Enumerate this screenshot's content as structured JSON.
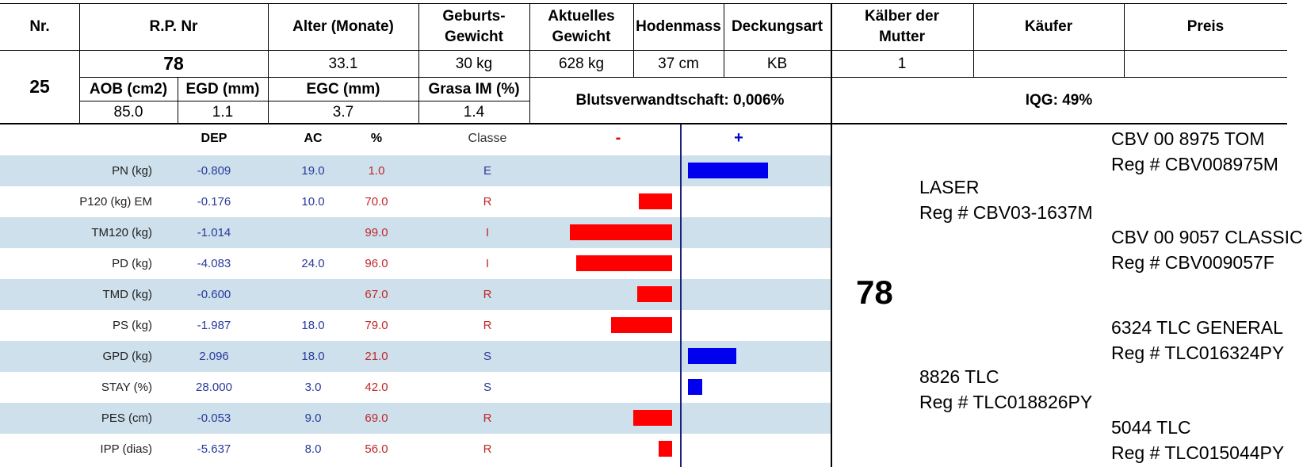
{
  "header": {
    "nr": "Nr.",
    "rp": "R.P. Nr",
    "alter": "Alter (Monate)",
    "geburts": [
      "Geburts-",
      "Gewicht"
    ],
    "aktuell": [
      "Aktuelles",
      "Gewicht"
    ],
    "hoden": "Hodenmass",
    "deckung": "Deckungsart",
    "kaelber": [
      "Kälber der",
      "Mutter"
    ],
    "kaeufer": "Käufer",
    "preis": "Preis"
  },
  "animal": {
    "nr": "25",
    "rp": "78",
    "alter": "33.1",
    "geburtsgewicht": "30 kg",
    "aktuelles_gewicht": "628 kg",
    "hodenmass": "37 cm",
    "deckungsart": "KB",
    "kaelber": "1",
    "kaeufer": "",
    "preis": ""
  },
  "carcass": {
    "aob_label": "AOB (cm2)",
    "aob": "85.0",
    "egd_label": "EGD (mm)",
    "egd": "1.1",
    "egc_label": "EGC (mm)",
    "egc": "3.7",
    "grasa_label": "Grasa IM (%)",
    "grasa": "1.4",
    "blut": "Blutsverwandtschaft: 0,006%",
    "iqg": "IQG: 49%"
  },
  "dep_header": {
    "dep": "DEP",
    "ac": "AC",
    "pct": "%",
    "classe": "Classe",
    "minus": "-",
    "plus": "+"
  },
  "dep_rows": [
    {
      "label": "PN (kg)",
      "dep": "-0.809",
      "ac": "19.0",
      "pct": "1.0",
      "classe": "E",
      "dir": "plus",
      "size": 0.78
    },
    {
      "label": "P120 (kg) EM",
      "dep": "-0.176",
      "ac": "10.0",
      "pct": "70.0",
      "classe": "R",
      "dir": "minus",
      "size": 0.32
    },
    {
      "label": "TM120 (kg)",
      "dep": "-1.014",
      "ac": "",
      "pct": "99.0",
      "classe": "I",
      "dir": "minus",
      "size": 0.99
    },
    {
      "label": "PD (kg)",
      "dep": "-4.083",
      "ac": "24.0",
      "pct": "96.0",
      "classe": "I",
      "dir": "minus",
      "size": 0.93
    },
    {
      "label": "TMD (kg)",
      "dep": "-0.600",
      "ac": "",
      "pct": "67.0",
      "classe": "R",
      "dir": "minus",
      "size": 0.34
    },
    {
      "label": "PS (kg)",
      "dep": "-1.987",
      "ac": "18.0",
      "pct": "79.0",
      "classe": "R",
      "dir": "minus",
      "size": 0.59
    },
    {
      "label": "GPD (kg)",
      "dep": "2.096",
      "ac": "18.0",
      "pct": "21.0",
      "classe": "S",
      "dir": "plus",
      "size": 0.47
    },
    {
      "label": "STAY (%)",
      "dep": "28.000",
      "ac": "3.0",
      "pct": "42.0",
      "classe": "S",
      "dir": "plus",
      "size": 0.14
    },
    {
      "label": "PES (cm)",
      "dep": "-0.053",
      "ac": "9.0",
      "pct": "69.0",
      "classe": "R",
      "dir": "minus",
      "size": 0.38
    },
    {
      "label": "IPP (dias)",
      "dep": "-5.637",
      "ac": "8.0",
      "pct": "56.0",
      "classe": "R",
      "dir": "minus",
      "size": 0.13
    }
  ],
  "pedigree": {
    "animal": "78",
    "sire": {
      "name": "LASER",
      "reg": "Reg # CBV03-1637M"
    },
    "sire_sire": {
      "name": "CBV 00 8975 TOM",
      "reg": "Reg # CBV008975M"
    },
    "sire_dam": {
      "name": "CBV 00 9057 CLASSIC",
      "reg": "Reg # CBV009057F"
    },
    "dam": {
      "name": "8826 TLC",
      "reg": "Reg # TLC018826PY"
    },
    "dam_sire": {
      "name": "6324 TLC GENERAL",
      "reg": "Reg # TLC016324PY"
    },
    "dam_dam": {
      "name": "5044 TLC",
      "reg": "Reg # TLC015044PY"
    }
  },
  "colors": {
    "band": "#cde0ec",
    "minus_bar": "#ff0000",
    "plus_bar": "#0000ee",
    "axis": "#1a237e"
  }
}
